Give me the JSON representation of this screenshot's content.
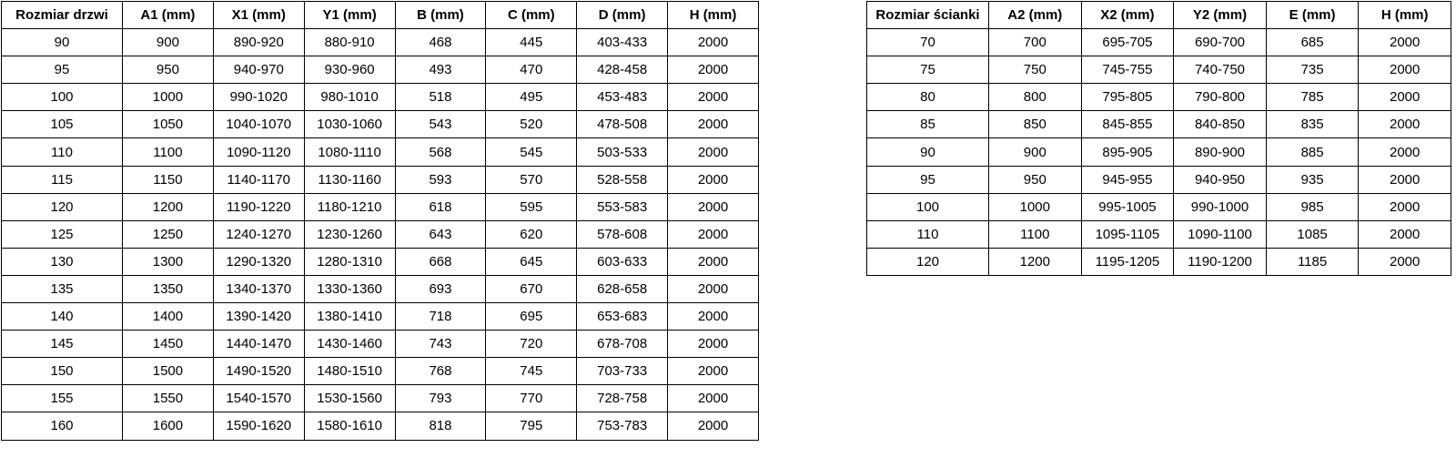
{
  "colors": {
    "background": "#ffffff",
    "border": "#000000",
    "text": "#000000"
  },
  "tables": {
    "doors": {
      "title": "door sizes table",
      "headers": [
        "Rozmiar drzwi",
        "A1 (mm)",
        "X1 (mm)",
        "Y1 (mm)",
        "B (mm)",
        "C (mm)",
        "D (mm)",
        "H (mm)"
      ],
      "rows": [
        [
          "90",
          "900",
          "890-920",
          "880-910",
          "468",
          "445",
          "403-433",
          "2000"
        ],
        [
          "95",
          "950",
          "940-970",
          "930-960",
          "493",
          "470",
          "428-458",
          "2000"
        ],
        [
          "100",
          "1000",
          "990-1020",
          "980-1010",
          "518",
          "495",
          "453-483",
          "2000"
        ],
        [
          "105",
          "1050",
          "1040-1070",
          "1030-1060",
          "543",
          "520",
          "478-508",
          "2000"
        ],
        [
          "110",
          "1100",
          "1090-1120",
          "1080-1110",
          "568",
          "545",
          "503-533",
          "2000"
        ],
        [
          "115",
          "1150",
          "1140-1170",
          "1130-1160",
          "593",
          "570",
          "528-558",
          "2000"
        ],
        [
          "120",
          "1200",
          "1190-1220",
          "1180-1210",
          "618",
          "595",
          "553-583",
          "2000"
        ],
        [
          "125",
          "1250",
          "1240-1270",
          "1230-1260",
          "643",
          "620",
          "578-608",
          "2000"
        ],
        [
          "130",
          "1300",
          "1290-1320",
          "1280-1310",
          "668",
          "645",
          "603-633",
          "2000"
        ],
        [
          "135",
          "1350",
          "1340-1370",
          "1330-1360",
          "693",
          "670",
          "628-658",
          "2000"
        ],
        [
          "140",
          "1400",
          "1390-1420",
          "1380-1410",
          "718",
          "695",
          "653-683",
          "2000"
        ],
        [
          "145",
          "1450",
          "1440-1470",
          "1430-1460",
          "743",
          "720",
          "678-708",
          "2000"
        ],
        [
          "150",
          "1500",
          "1490-1520",
          "1480-1510",
          "768",
          "745",
          "703-733",
          "2000"
        ],
        [
          "155",
          "1550",
          "1540-1570",
          "1530-1560",
          "793",
          "770",
          "728-758",
          "2000"
        ],
        [
          "160",
          "1600",
          "1590-1620",
          "1580-1610",
          "818",
          "795",
          "753-783",
          "2000"
        ]
      ]
    },
    "walls": {
      "title": "wall panel sizes table",
      "headers": [
        "Rozmiar ścianki",
        "A2 (mm)",
        "X2 (mm)",
        "Y2 (mm)",
        "E (mm)",
        "H (mm)"
      ],
      "rows": [
        [
          "70",
          "700",
          "695-705",
          "690-700",
          "685",
          "2000"
        ],
        [
          "75",
          "750",
          "745-755",
          "740-750",
          "735",
          "2000"
        ],
        [
          "80",
          "800",
          "795-805",
          "790-800",
          "785",
          "2000"
        ],
        [
          "85",
          "850",
          "845-855",
          "840-850",
          "835",
          "2000"
        ],
        [
          "90",
          "900",
          "895-905",
          "890-900",
          "885",
          "2000"
        ],
        [
          "95",
          "950",
          "945-955",
          "940-950",
          "935",
          "2000"
        ],
        [
          "100",
          "1000",
          "995-1005",
          "990-1000",
          "985",
          "2000"
        ],
        [
          "110",
          "1100",
          "1095-1105",
          "1090-1100",
          "1085",
          "2000"
        ],
        [
          "120",
          "1200",
          "1195-1205",
          "1190-1200",
          "1185",
          "2000"
        ]
      ]
    }
  }
}
